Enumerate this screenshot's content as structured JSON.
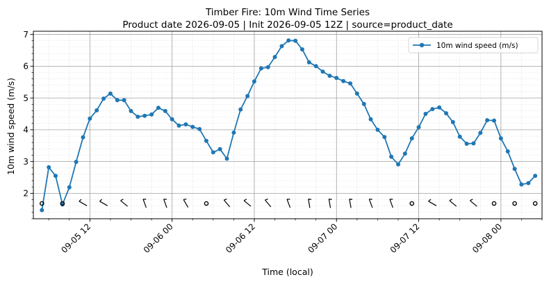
{
  "chart_data": {
    "type": "line",
    "title": "Timber Fire: 10m Wind Time Series",
    "subtitle": "Product date 2026-09-05 | Init 2026-09-05 12Z | source=product_date",
    "xlabel": "Time (local)",
    "ylabel": "10m wind speed (m/s)",
    "x_start": "2026-09-05T05:00",
    "x_step_hours": 1,
    "xlim": [
      "2026-09-05T03:45",
      "2026-09-08T06:00"
    ],
    "ylim": [
      1.2,
      7.1
    ],
    "x_ticks": [
      "09-05 12",
      "09-06 00",
      "09-06 12",
      "09-07 00",
      "09-07 12",
      "09-08 00"
    ],
    "y_ticks": [
      "2",
      "3",
      "4",
      "5",
      "6",
      "7"
    ],
    "grid": true,
    "legend_position": "top-right",
    "series": [
      {
        "name": "10m wind speed (m/s)",
        "color": "#1f77b4",
        "values": [
          1.47,
          2.82,
          2.55,
          1.65,
          2.19,
          2.99,
          3.76,
          4.35,
          4.61,
          4.98,
          5.14,
          4.93,
          4.93,
          4.59,
          4.41,
          4.44,
          4.48,
          4.69,
          4.59,
          4.33,
          4.13,
          4.17,
          4.09,
          4.02,
          3.65,
          3.29,
          3.39,
          3.09,
          3.91,
          4.64,
          5.06,
          5.52,
          5.93,
          5.97,
          6.29,
          6.63,
          6.81,
          6.8,
          6.53,
          6.12,
          6.0,
          5.83,
          5.7,
          5.63,
          5.53,
          5.46,
          5.14,
          4.81,
          4.33,
          4.0,
          3.77,
          3.15,
          2.91,
          3.25,
          3.73,
          4.08,
          4.5,
          4.65,
          4.7,
          4.52,
          4.24,
          3.78,
          3.56,
          3.57,
          3.9,
          4.3,
          4.29,
          3.73,
          3.32,
          2.77,
          2.28,
          2.32,
          2.55
        ]
      }
    ],
    "wind_barbs": [
      {
        "x": "2026-09-05T05:00",
        "type": "calm"
      },
      {
        "x": "2026-09-05T08:00",
        "type": "calm"
      },
      {
        "x": "2026-09-05T11:00",
        "type": "barb",
        "dir": 300
      },
      {
        "x": "2026-09-05T14:00",
        "type": "barb",
        "dir": 300
      },
      {
        "x": "2026-09-05T17:00",
        "type": "barb",
        "dir": 310
      },
      {
        "x": "2026-09-05T20:00",
        "type": "barb",
        "dir": 340
      },
      {
        "x": "2026-09-05T23:00",
        "type": "barb",
        "dir": 340
      },
      {
        "x": "2026-09-06T02:00",
        "type": "barb",
        "dir": 330
      },
      {
        "x": "2026-09-06T05:00",
        "type": "calm"
      },
      {
        "x": "2026-09-06T08:00",
        "type": "barb",
        "dir": 320
      },
      {
        "x": "2026-09-06T11:00",
        "type": "barb",
        "dir": 310
      },
      {
        "x": "2026-09-06T14:00",
        "type": "barb",
        "dir": 320
      },
      {
        "x": "2026-09-06T17:00",
        "type": "barb",
        "dir": 340
      },
      {
        "x": "2026-09-06T20:00",
        "type": "barb",
        "dir": 350
      },
      {
        "x": "2026-09-06T23:00",
        "type": "barb",
        "dir": 350
      },
      {
        "x": "2026-09-07T02:00",
        "type": "barb",
        "dir": 350
      },
      {
        "x": "2026-09-07T05:00",
        "type": "barb",
        "dir": 340
      },
      {
        "x": "2026-09-07T08:00",
        "type": "barb",
        "dir": 340
      },
      {
        "x": "2026-09-07T11:00",
        "type": "calm"
      },
      {
        "x": "2026-09-07T14:00",
        "type": "barb",
        "dir": 300
      },
      {
        "x": "2026-09-07T17:00",
        "type": "barb",
        "dir": 310
      },
      {
        "x": "2026-09-07T20:00",
        "type": "barb",
        "dir": 310
      },
      {
        "x": "2026-09-07T23:00",
        "type": "calm"
      },
      {
        "x": "2026-09-08T02:00",
        "type": "calm"
      },
      {
        "x": "2026-09-08T05:00",
        "type": "calm"
      }
    ],
    "wind_barb_y": 1.68
  }
}
